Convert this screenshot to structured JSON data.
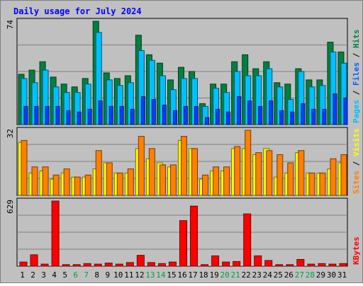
{
  "colors": {
    "background": "#c0c0c0",
    "panel": "#c0c0c0",
    "title": "#0000ff",
    "pages": "#00c0ff",
    "hits": "#008040",
    "files": "#00c0ff",
    "visits": "#ffff00",
    "sites": "#ff8000",
    "kbytes": "#ff0000",
    "weekend_label": "#00a040"
  },
  "chart_data": [
    {
      "type": "bar",
      "title": "Daily usage for July 2024",
      "panel": "hits-files-pages",
      "y_max_label": "74",
      "legend": [
        "Pages",
        "/",
        "Files",
        "/",
        "Hits"
      ],
      "categories": [
        "1",
        "2",
        "3",
        "4",
        "5",
        "6",
        "7",
        "8",
        "9",
        "10",
        "11",
        "12",
        "13",
        "14",
        "15",
        "16",
        "17",
        "18",
        "19",
        "20",
        "21",
        "22",
        "23",
        "24",
        "25",
        "26",
        "27",
        "28",
        "29",
        "30",
        "31"
      ],
      "series": [
        {
          "name": "Hits",
          "values": [
            36,
            39,
            45,
            34,
            29,
            27,
            33,
            74,
            37,
            33,
            35,
            64,
            50,
            44,
            32,
            41,
            38,
            15,
            29,
            29,
            45,
            50,
            40,
            45,
            30,
            29,
            40,
            32,
            32,
            59,
            52
          ]
        },
        {
          "name": "Files",
          "values": [
            33,
            30,
            39,
            27,
            23,
            23,
            29,
            66,
            32,
            28,
            30,
            53,
            46,
            35,
            25,
            33,
            33,
            13,
            26,
            23,
            38,
            35,
            35,
            40,
            27,
            18,
            38,
            27,
            28,
            52,
            44
          ]
        },
        {
          "name": "Pages",
          "values": [
            13,
            13,
            13,
            13,
            10,
            9,
            11,
            17,
            13,
            13,
            11,
            20,
            18,
            14,
            10,
            13,
            13,
            5,
            11,
            9,
            20,
            17,
            13,
            17,
            10,
            9,
            15,
            11,
            11,
            22,
            19
          ]
        }
      ],
      "ylim": [
        0,
        74
      ]
    },
    {
      "type": "bar",
      "panel": "visits-sites",
      "y_max_label": "32",
      "legend": [
        "Sites",
        "/",
        "Visits"
      ],
      "categories": [
        "1",
        "2",
        "3",
        "4",
        "5",
        "6",
        "7",
        "8",
        "9",
        "10",
        "11",
        "12",
        "13",
        "14",
        "15",
        "16",
        "17",
        "18",
        "19",
        "20",
        "21",
        "22",
        "23",
        "24",
        "25",
        "26",
        "27",
        "28",
        "29",
        "30",
        "31"
      ],
      "series": [
        {
          "name": "Visits",
          "values": [
            26,
            11,
            12,
            8,
            11,
            9,
            9,
            13,
            16,
            11,
            11,
            23,
            18,
            16,
            14,
            27,
            23,
            8,
            12,
            12,
            23,
            23,
            20,
            23,
            9,
            11,
            21,
            11,
            11,
            13,
            16
          ]
        },
        {
          "name": "Sites",
          "values": [
            27,
            14,
            14,
            10,
            13,
            9,
            10,
            22,
            16,
            11,
            13,
            29,
            23,
            15,
            15,
            29,
            23,
            10,
            14,
            14,
            24,
            32,
            21,
            22,
            20,
            16,
            22,
            11,
            11,
            18,
            20
          ]
        }
      ],
      "ylim": [
        0,
        32
      ]
    },
    {
      "type": "bar",
      "panel": "kbytes",
      "y_max_label": "629",
      "legend": [
        "KBytes"
      ],
      "categories": [
        "1",
        "2",
        "3",
        "4",
        "5",
        "6",
        "7",
        "8",
        "9",
        "10",
        "11",
        "12",
        "13",
        "14",
        "15",
        "16",
        "17",
        "18",
        "19",
        "20",
        "21",
        "22",
        "23",
        "24",
        "25",
        "26",
        "27",
        "28",
        "29",
        "30",
        "31"
      ],
      "weekend_days": [
        "6",
        "7",
        "13",
        "14",
        "20",
        "21",
        "27",
        "28"
      ],
      "series": [
        {
          "name": "KBytes",
          "values": [
            40,
            110,
            20,
            629,
            15,
            15,
            25,
            20,
            30,
            20,
            35,
            105,
            35,
            25,
            40,
            440,
            580,
            15,
            100,
            40,
            45,
            505,
            100,
            55,
            15,
            15,
            65,
            20,
            25,
            20,
            25
          ]
        }
      ],
      "ylim": [
        0,
        629
      ]
    }
  ]
}
